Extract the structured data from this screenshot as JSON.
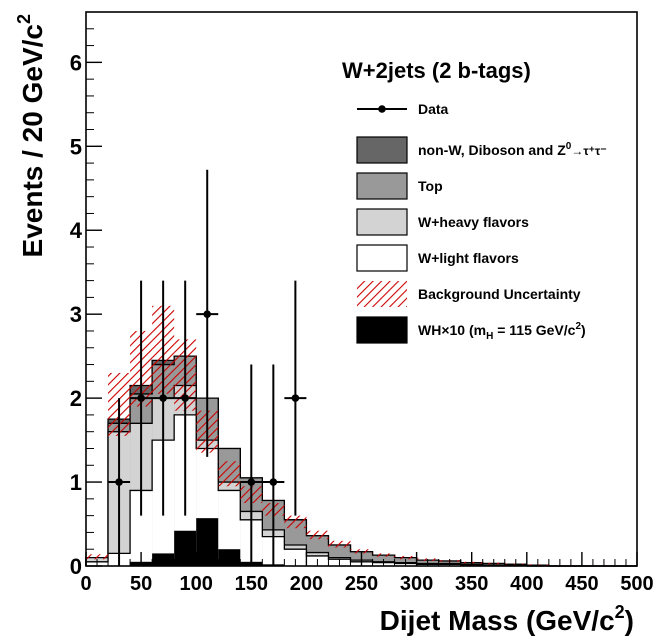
{
  "chart_data": {
    "type": "bar",
    "title": "W+2jets (2 b-tags)",
    "xlabel": "Dijet Mass (GeV/c",
    "xlabel_sup": "2",
    "xlabel_close": ")",
    "ylabel": "Events / 20 GeV/c",
    "ylabel_sup": "2",
    "xlim": [
      0,
      500
    ],
    "ylim": [
      0,
      6.6
    ],
    "stacked": true,
    "grid": false,
    "legend_position": "top-right",
    "x_ticks": [
      0,
      50,
      100,
      150,
      200,
      250,
      300,
      350,
      400,
      450,
      500
    ],
    "x_tick_labels": [
      "0",
      "50",
      "100",
      "150",
      "200",
      "250",
      "300",
      "350",
      "400",
      "450",
      "500"
    ],
    "y_ticks": [
      0,
      1,
      2,
      3,
      4,
      5,
      6
    ],
    "y_tick_labels": [
      "0",
      "1",
      "2",
      "3",
      "4",
      "5",
      "6"
    ],
    "bin_edges": [
      0,
      20,
      40,
      60,
      80,
      100,
      120,
      140,
      160,
      180,
      200,
      220,
      240,
      260,
      280,
      300,
      320,
      340,
      360,
      380,
      400,
      420,
      440,
      460,
      480,
      500
    ],
    "stack": [
      {
        "name": "W+light flavors",
        "color": "#ffffff",
        "values": [
          0.05,
          0.15,
          0.9,
          1.5,
          1.8,
          1.4,
          0.9,
          0.55,
          0.35,
          0.2,
          0.12,
          0.08,
          0.05,
          0.04,
          0.03,
          0.02,
          0.02,
          0.01,
          0.01,
          0.01,
          0.0,
          0.0,
          0.0,
          0.0,
          0.0
        ]
      },
      {
        "name": "W+heavy flavors",
        "color": "#d3d3d3",
        "values": [
          0.05,
          1.45,
          0.8,
          0.5,
          0.35,
          0.1,
          0.1,
          0.1,
          0.08,
          0.05,
          0.04,
          0.02,
          0.02,
          0.01,
          0.01,
          0.01,
          0.01,
          0.01,
          0.0,
          0.0,
          0.0,
          0.0,
          0.0,
          0.0,
          0.0
        ]
      },
      {
        "name": "Top",
        "color": "#999999",
        "values": [
          0.0,
          0.1,
          0.35,
          0.4,
          0.35,
          0.5,
          0.4,
          0.4,
          0.35,
          0.3,
          0.2,
          0.15,
          0.1,
          0.08,
          0.06,
          0.04,
          0.03,
          0.02,
          0.02,
          0.01,
          0.01,
          0.0,
          0.0,
          0.0,
          0.0
        ]
      },
      {
        "name": "non-W, Diboson and Z⁰→τ⁺τ⁻",
        "color": "#666666",
        "values": [
          0.0,
          0.05,
          0.1,
          0.05,
          0.0,
          0.0,
          0.0,
          0.0,
          0.0,
          0.0,
          0.0,
          0.0,
          0.0,
          0.0,
          0.0,
          0.0,
          0.0,
          0.0,
          0.0,
          0.0,
          0.0,
          0.0,
          0.0,
          0.0,
          0.0
        ]
      }
    ],
    "signal": {
      "name": "WH×10 (mₕ = 115 GeV/c²)",
      "color": "#000000",
      "values": [
        0.0,
        0.0,
        0.05,
        0.15,
        0.42,
        0.57,
        0.2,
        0.05,
        0.02,
        0.0,
        0.0,
        0.0,
        0.0,
        0.0,
        0.0,
        0.0,
        0.0,
        0.0,
        0.0,
        0.0,
        0.0,
        0.0,
        0.0,
        0.0,
        0.0
      ]
    },
    "uncertainty": {
      "name": "Background Uncertainty",
      "color": "#cc0000",
      "low": [
        0.08,
        1.55,
        1.9,
        2.05,
        1.85,
        1.35,
        0.95,
        0.75,
        0.6,
        0.45,
        0.32,
        0.22,
        0.15,
        0.11,
        0.08,
        0.06,
        0.05,
        0.03,
        0.02,
        0.02,
        0.0,
        0.0,
        0.0,
        0.0,
        0.0
      ],
      "high": [
        0.14,
        2.3,
        2.8,
        3.1,
        2.7,
        1.85,
        1.25,
        0.95,
        0.75,
        0.6,
        0.42,
        0.3,
        0.2,
        0.15,
        0.12,
        0.09,
        0.07,
        0.05,
        0.04,
        0.03,
        0.02,
        0.01,
        0.01,
        0.01,
        0.0
      ]
    },
    "data": {
      "name": "Data",
      "x": [
        30,
        50,
        70,
        90,
        110,
        150,
        170,
        190
      ],
      "y": [
        1,
        2,
        2,
        2,
        3,
        1,
        1,
        2
      ],
      "yerr_low": [
        1,
        1.4,
        1.4,
        1.4,
        1.7,
        1,
        1,
        1.4
      ],
      "yerr_high": [
        1.0,
        1.4,
        1.4,
        1.4,
        1.72,
        1.4,
        1.4,
        1.4
      ]
    },
    "legend": [
      {
        "label": "Data",
        "kind": "data"
      },
      {
        "label": "non-W, Diboson and Z",
        "sup": "0",
        "tail": "→τ⁺τ⁻",
        "kind": "box",
        "color": "#666666"
      },
      {
        "label": "Top",
        "kind": "box",
        "color": "#999999"
      },
      {
        "label": "W+heavy flavors",
        "kind": "box",
        "color": "#d3d3d3"
      },
      {
        "label": "W+light flavors",
        "kind": "box",
        "color": "#ffffff"
      },
      {
        "label": "Background Uncertainty",
        "kind": "hatch",
        "color": "#cc0000"
      },
      {
        "label": "WH×10 (m",
        "sub": "H",
        "tail": " = 115 GeV/c",
        "sup2": "2",
        "tail2": ")",
        "kind": "box",
        "color": "#000000"
      }
    ]
  }
}
